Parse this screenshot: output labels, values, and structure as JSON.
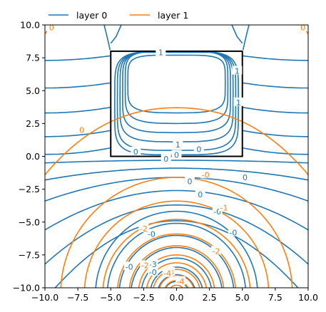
{
  "chart_data": {
    "type": "contour",
    "title": "",
    "xlabel": "",
    "ylabel": "",
    "xlim": [
      -10,
      10
    ],
    "ylim": [
      -10,
      10
    ],
    "x_ticks": [
      -10,
      -7.5,
      -5,
      -2.5,
      0,
      2.5,
      5,
      7.5,
      10
    ],
    "y_ticks": [
      -10,
      -7.5,
      -5,
      -2.5,
      0,
      2.5,
      5,
      7.5,
      10
    ],
    "x_tick_labels": [
      "−10.0",
      "−7.5",
      "−5.0",
      "−2.5",
      "0.0",
      "2.5",
      "5.0",
      "7.5",
      "10.0"
    ],
    "y_tick_labels": [
      "−10.0",
      "−7.5",
      "−5.0",
      "−2.5",
      "0.0",
      "2.5",
      "5.0",
      "7.5",
      "10.0"
    ],
    "grid": false,
    "legend": {
      "position": "above-left",
      "columns": 2
    },
    "series": [
      {
        "name": "layer 0",
        "color": "#1f77b4"
      },
      {
        "name": "layer 1",
        "color": "#ff7f0e"
      }
    ],
    "annotations": {
      "rectangle": {
        "x0": -5,
        "y0": 0,
        "x1": 5,
        "y1": 8,
        "color": "#000000"
      },
      "layer0_labels": [
        {
          "text": "1",
          "x": -1.2,
          "y": 7.9
        },
        {
          "text": "1",
          "x": 4.6,
          "y": 6.5
        },
        {
          "text": "1",
          "x": 4.7,
          "y": 4.1
        },
        {
          "text": "1",
          "x": 0.1,
          "y": 0.9
        },
        {
          "text": "0",
          "x": 1.7,
          "y": 0.55
        },
        {
          "text": "0",
          "x": -3.1,
          "y": 0.35
        },
        {
          "text": "0",
          "x": 0.0,
          "y": 0.1
        },
        {
          "text": "0",
          "x": -0.8,
          "y": -0.2
        },
        {
          "text": "0",
          "x": 5.2,
          "y": -1.6
        },
        {
          "text": "0",
          "x": 1.0,
          "y": -1.9
        },
        {
          "text": "0",
          "x": 1.8,
          "y": -2.9
        },
        {
          "text": "-0",
          "x": 3.1,
          "y": -4.2
        },
        {
          "text": "-0",
          "x": 4.3,
          "y": -5.8
        },
        {
          "text": "-0",
          "x": -1.9,
          "y": -5.9
        },
        {
          "text": "-0",
          "x": -3.6,
          "y": -8.4
        },
        {
          "text": "-0",
          "x": -1.8,
          "y": -8.8
        },
        {
          "text": "-3",
          "x": -1.8,
          "y": -8.2
        }
      ],
      "layer1_labels": [
        {
          "text": "0",
          "x": -9.5,
          "y": 9.8
        },
        {
          "text": "0",
          "x": 9.6,
          "y": 9.8
        },
        {
          "text": "0",
          "x": -7.2,
          "y": 2.0
        },
        {
          "text": "-0",
          "x": 2.2,
          "y": -1.4
        },
        {
          "text": "-1",
          "x": 3.6,
          "y": -3.9
        },
        {
          "text": "-2",
          "x": -2.5,
          "y": -5.5
        },
        {
          "text": "-2",
          "x": 3.0,
          "y": -7.2
        },
        {
          "text": "-2",
          "x": -2.4,
          "y": -8.3
        },
        {
          "text": "-3",
          "x": -0.5,
          "y": -8.8
        },
        {
          "text": "-4",
          "x": -0.7,
          "y": -8.9
        },
        {
          "text": "-4",
          "x": 0.3,
          "y": -9.5
        }
      ]
    }
  }
}
